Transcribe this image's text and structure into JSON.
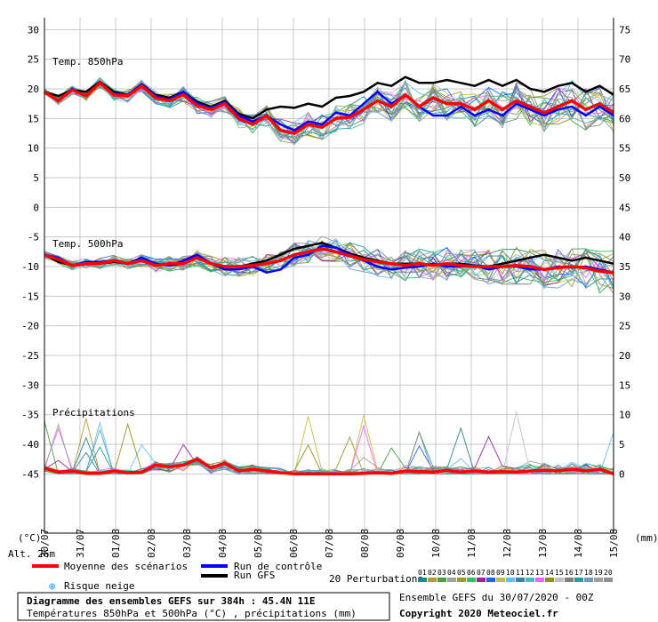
{
  "chart_data": {
    "type": "line",
    "title": "Diagramme des ensembles GEFS sur 384h : 45.4N 11E",
    "subtitle": "Températures 850hPa et 500hPa (°C) , précipitations (mm)",
    "left_axis_unit": "(°C)",
    "right_axis_unit": "(mm)",
    "altitude_label": "Alt. 26m",
    "left_ticks": [
      30,
      25,
      20,
      15,
      10,
      5,
      0,
      -5,
      -10,
      -15,
      -20,
      -25,
      -30,
      -35,
      -40,
      -45
    ],
    "right_ticks_top": [
      75,
      70,
      65,
      60,
      55,
      50,
      45
    ],
    "right_ticks_bottom": [
      40,
      35,
      30,
      25,
      20,
      15,
      10,
      5,
      0
    ],
    "x_labels": [
      "30/07",
      "31/07",
      "01/08",
      "02/08",
      "03/08",
      "04/08",
      "05/08",
      "06/08",
      "07/08",
      "08/08",
      "09/08",
      "10/08",
      "11/08",
      "12/08",
      "13/08",
      "14/08",
      "15/08"
    ],
    "ylim": [
      -55,
      32
    ],
    "grid": true,
    "panels": [
      {
        "label": "Temp. 850hPa",
        "mean": [
          19.5,
          18,
          19.8,
          18.8,
          21,
          19,
          18.8,
          20.5,
          18.5,
          18,
          19,
          17.2,
          16.5,
          17.5,
          15,
          14,
          15.5,
          13,
          12.5,
          14,
          13.5,
          15,
          15.2,
          16.5,
          18,
          17,
          19,
          17,
          18.5,
          17.5,
          17.5,
          16.5,
          18,
          16.5,
          18,
          17,
          16,
          17,
          18,
          16.5,
          17.5,
          16
        ],
        "control": [
          19.5,
          18,
          20,
          18.8,
          21,
          19.2,
          19,
          20.8,
          18.8,
          18.2,
          19.5,
          17.5,
          16.8,
          17.8,
          15.5,
          14.5,
          15.5,
          14,
          13,
          14.5,
          14,
          16,
          15.5,
          17.5,
          19.5,
          17.5,
          19,
          17,
          15.5,
          15.5,
          17,
          15.5,
          16.5,
          15.5,
          17.5,
          16.5,
          15.5,
          16.5,
          17,
          15.5,
          17,
          15.5
        ],
        "gfs": [
          19.5,
          18.8,
          19.8,
          19.5,
          21.2,
          19.5,
          19,
          20.8,
          19,
          18.5,
          19.5,
          17.8,
          17,
          18,
          15.8,
          15,
          16.5,
          17,
          16.8,
          17.5,
          17,
          18.5,
          18.8,
          19.5,
          21,
          20.5,
          22,
          21,
          21,
          21.5,
          21,
          20.5,
          21.5,
          20.5,
          21.5,
          20,
          19.5,
          20.5,
          21,
          19.5,
          20.5,
          19
        ]
      },
      {
        "label": "Temp. 500hPa",
        "mean": [
          -8,
          -8.8,
          -9.8,
          -9.5,
          -9.5,
          -9,
          -9.5,
          -9,
          -9.8,
          -9.5,
          -9.5,
          -8.5,
          -9.5,
          -10,
          -10,
          -9.8,
          -9.5,
          -9,
          -8,
          -7.5,
          -7,
          -7.5,
          -8.2,
          -8.8,
          -9.2,
          -9.5,
          -9.8,
          -9.5,
          -9.8,
          -9.5,
          -9.8,
          -10,
          -10,
          -10,
          -9.8,
          -10,
          -10.5,
          -10.2,
          -10,
          -10.2,
          -10.8,
          -11
        ],
        "control": [
          -8,
          -8.5,
          -9.8,
          -9.2,
          -9.2,
          -9,
          -9.5,
          -8.5,
          -9.5,
          -9.8,
          -9,
          -8,
          -9.5,
          -10.5,
          -10.5,
          -10,
          -11,
          -10.5,
          -8.5,
          -8,
          -6.5,
          -6.8,
          -8,
          -9,
          -10,
          -10.5,
          -10.2,
          -10,
          -9.5,
          -10,
          -10,
          -9.8,
          -10.5,
          -10,
          -10,
          -10.5,
          -10.5,
          -10,
          -10.2,
          -10,
          -10.5,
          -11
        ],
        "gfs": [
          -8,
          -9.2,
          -9.8,
          -9.5,
          -9.5,
          -9.2,
          -9.5,
          -8.5,
          -9.5,
          -9.8,
          -9.5,
          -8.5,
          -9.5,
          -10,
          -10,
          -9.5,
          -9,
          -8,
          -7,
          -6.5,
          -6,
          -6.8,
          -7.8,
          -8.5,
          -9,
          -9.5,
          -9.5,
          -9.5,
          -9.8,
          -9.5,
          -9.5,
          -9.8,
          -10,
          -9.5,
          -9,
          -8.5,
          -8,
          -8.5,
          -9,
          -8.5,
          -9,
          -9.5
        ]
      },
      {
        "label": "Précipitations",
        "unit": "mm",
        "mean": [
          1,
          0.3,
          0.5,
          0.1,
          0.1,
          0.5,
          0.2,
          0.3,
          1.5,
          1.2,
          1.5,
          2.5,
          1,
          1.8,
          0.5,
          0.8,
          0.5,
          0.2,
          0,
          0,
          0,
          0,
          0,
          0.1,
          0.2,
          0.1,
          0.5,
          0.4,
          0.3,
          0.6,
          0.3,
          0.5,
          0.3,
          0.4,
          0.3,
          0.5,
          0.6,
          0.5,
          0.8,
          0.5,
          0.8,
          0
        ]
      }
    ],
    "perturbation_count": 20,
    "legend": {
      "mean_label": "Moyenne des scénarios",
      "control_label": "Run de contrôle",
      "gfs_label": "Run GFS",
      "snow_label": "Risque neige",
      "perturbations_label": "20 Perturbations",
      "perturbation_numbers": [
        "01",
        "02",
        "03",
        "04",
        "05",
        "06",
        "07",
        "08",
        "09",
        "10",
        "11",
        "12",
        "13",
        "14",
        "15",
        "16",
        "17",
        "18",
        "19",
        "20"
      ],
      "perturbation_colors": [
        "#1f8a8a",
        "#b59a3a",
        "#46a046",
        "#a0a0a0",
        "#9a9a30",
        "#30c060",
        "#a020a0",
        "#2060ff",
        "#c0c040",
        "#60c0ff",
        "#4080a0",
        "#40c0c0",
        "#ff60ff",
        "#909020",
        "#c0c0c0",
        "#808080",
        "#20a0a0",
        "#60a0c0",
        "#a0a0a0",
        "#909090"
      ]
    },
    "series_colors": {
      "mean": "#ff0000",
      "control": "#0000ff",
      "gfs": "#000000"
    },
    "footer": {
      "run": "Ensemble GEFS du 30/07/2020 - 00Z",
      "copyright": "Copyright 2020 Meteociel.fr"
    }
  }
}
